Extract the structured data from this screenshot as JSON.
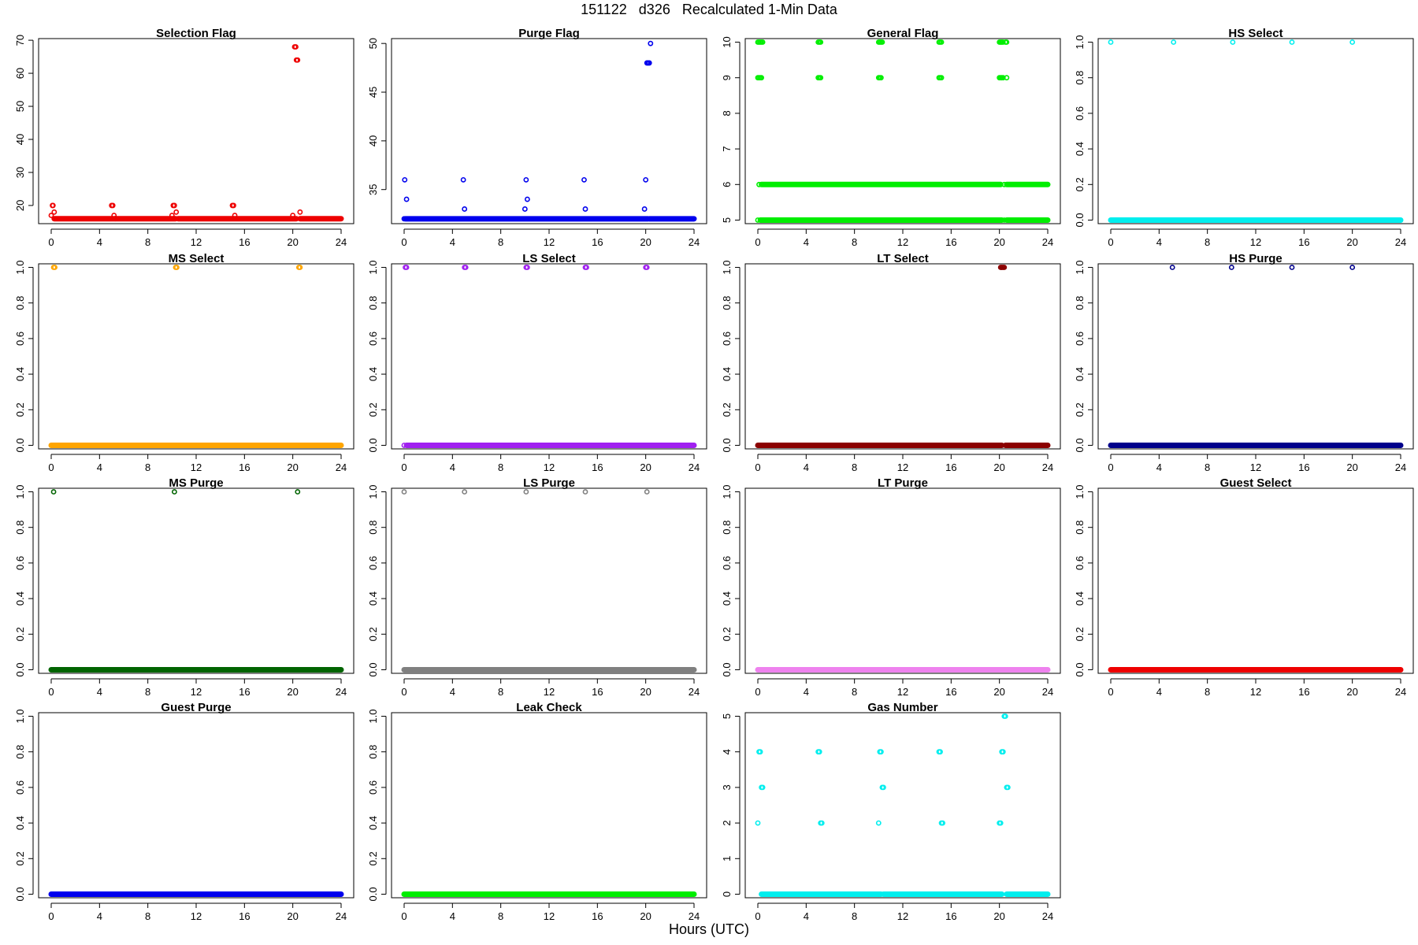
{
  "figure": {
    "title": "151122   d326   Recalculated 1-Min Data",
    "xlabel": "Hours (UTC)"
  },
  "chart_data": [
    {
      "type": "scatter",
      "title": "Selection Flag",
      "color": "#ee0000",
      "xlim": [
        0,
        24
      ],
      "ylim": [
        14.5,
        70.5
      ],
      "xticks": [
        0,
        4,
        8,
        12,
        16,
        20,
        24
      ],
      "yticks": [
        20,
        30,
        40,
        50,
        60,
        70
      ],
      "segments": [
        {
          "from": 0.25,
          "to": 10.3,
          "y": 16
        },
        {
          "from": 10.5,
          "to": 20.3,
          "y": 16
        },
        {
          "from": 20.6,
          "to": 24,
          "y": 16
        }
      ],
      "points": [
        [
          0,
          17
        ],
        [
          0.1,
          20
        ],
        [
          0.15,
          20
        ],
        [
          0.25,
          18
        ],
        [
          5.0,
          20
        ],
        [
          5.1,
          20
        ],
        [
          5.2,
          17
        ],
        [
          5.3,
          16
        ],
        [
          10.0,
          17
        ],
        [
          10.1,
          20
        ],
        [
          10.2,
          20
        ],
        [
          10.35,
          18
        ],
        [
          15.0,
          20
        ],
        [
          15.1,
          20
        ],
        [
          15.2,
          17
        ],
        [
          20.0,
          17
        ],
        [
          20.15,
          68
        ],
        [
          20.25,
          68
        ],
        [
          20.3,
          64
        ],
        [
          20.4,
          64
        ],
        [
          20.6,
          18
        ]
      ]
    },
    {
      "type": "scatter",
      "title": "Purge Flag",
      "color": "#0000ee",
      "xlim": [
        0,
        24
      ],
      "ylim": [
        31.5,
        50.5
      ],
      "xticks": [
        0,
        4,
        8,
        12,
        16,
        20,
        24
      ],
      "yticks": [
        35,
        40,
        45,
        50
      ],
      "segments": [
        {
          "from": 0.1,
          "to": 20.2,
          "y": 32
        },
        {
          "from": 20.3,
          "to": 24,
          "y": 32
        }
      ],
      "points": [
        [
          0,
          32
        ],
        [
          0.05,
          36
        ],
        [
          0.2,
          34
        ],
        [
          4.9,
          36
        ],
        [
          5.0,
          33
        ],
        [
          10.0,
          33
        ],
        [
          10.1,
          36
        ],
        [
          10.2,
          34
        ],
        [
          14.9,
          36
        ],
        [
          15.0,
          33
        ],
        [
          19.9,
          33
        ],
        [
          20.0,
          36
        ],
        [
          20.1,
          48
        ],
        [
          20.2,
          48
        ],
        [
          20.3,
          48
        ],
        [
          20.4,
          50
        ]
      ]
    },
    {
      "type": "scatter",
      "title": "General Flag",
      "color": "#00ee00",
      "xlim": [
        0,
        24
      ],
      "ylim": [
        4.9,
        10.1
      ],
      "xticks": [
        0,
        4,
        8,
        12,
        16,
        20,
        24
      ],
      "yticks": [
        5,
        6,
        7,
        8,
        9,
        10
      ],
      "segments": [
        {
          "from": 0.2,
          "to": 20.2,
          "y": 5
        },
        {
          "from": 20.6,
          "to": 24,
          "y": 5
        },
        {
          "from": 0.3,
          "to": 20.1,
          "y": 6
        },
        {
          "from": 20.6,
          "to": 24,
          "y": 6
        }
      ],
      "points": [
        [
          0,
          10
        ],
        [
          0.1,
          10
        ],
        [
          0.2,
          10
        ],
        [
          0.3,
          10
        ],
        [
          0.4,
          10
        ],
        [
          0,
          9
        ],
        [
          0.1,
          9
        ],
        [
          0.2,
          9
        ],
        [
          0.3,
          9
        ],
        [
          5.0,
          10
        ],
        [
          5.1,
          10
        ],
        [
          5.2,
          10
        ],
        [
          5.0,
          9
        ],
        [
          5.1,
          9
        ],
        [
          5.2,
          9
        ],
        [
          10.0,
          10
        ],
        [
          10.1,
          10
        ],
        [
          10.2,
          10
        ],
        [
          10.3,
          10
        ],
        [
          10.0,
          9
        ],
        [
          10.1,
          9
        ],
        [
          10.2,
          9
        ],
        [
          15.0,
          10
        ],
        [
          15.1,
          10
        ],
        [
          15.2,
          10
        ],
        [
          15.0,
          9
        ],
        [
          15.1,
          9
        ],
        [
          15.2,
          9
        ],
        [
          20.0,
          10
        ],
        [
          20.1,
          10
        ],
        [
          20.2,
          10
        ],
        [
          20.3,
          10
        ],
        [
          20.5,
          10
        ],
        [
          20.6,
          10
        ],
        [
          20.0,
          9
        ],
        [
          20.1,
          9
        ],
        [
          20.2,
          9
        ],
        [
          20.3,
          9
        ],
        [
          20.6,
          9
        ],
        [
          0,
          5
        ],
        [
          20.4,
          5
        ],
        [
          0.1,
          6
        ],
        [
          20.4,
          6
        ]
      ]
    },
    {
      "type": "scatter",
      "title": "HS Select",
      "color": "#00eeee",
      "xlim": [
        0,
        24
      ],
      "ylim": [
        -0.02,
        1.02
      ],
      "xticks": [
        0,
        4,
        8,
        12,
        16,
        20,
        24
      ],
      "yticks": [
        0.0,
        0.2,
        0.4,
        0.6,
        0.8,
        1.0
      ],
      "segments": [
        {
          "from": 0,
          "to": 24,
          "y": 0
        }
      ],
      "points": [
        [
          0,
          1
        ],
        [
          5.2,
          1
        ],
        [
          10.1,
          1
        ],
        [
          15.0,
          1
        ],
        [
          20.0,
          1
        ]
      ]
    },
    {
      "type": "scatter",
      "title": "MS Select",
      "color": "#ffa500",
      "xlim": [
        0,
        24
      ],
      "ylim": [
        -0.02,
        1.02
      ],
      "xticks": [
        0,
        4,
        8,
        12,
        16,
        20,
        24
      ],
      "yticks": [
        0.0,
        0.2,
        0.4,
        0.6,
        0.8,
        1.0
      ],
      "segments": [
        {
          "from": 0,
          "to": 24,
          "y": 0
        }
      ],
      "points": [
        [
          0.2,
          1
        ],
        [
          0.3,
          1
        ],
        [
          10.3,
          1
        ],
        [
          10.4,
          1
        ],
        [
          20.5,
          1
        ],
        [
          20.6,
          1
        ]
      ]
    },
    {
      "type": "scatter",
      "title": "LS Select",
      "color": "#a020f0",
      "xlim": [
        0,
        24
      ],
      "ylim": [
        -0.02,
        1.02
      ],
      "xticks": [
        0,
        4,
        8,
        12,
        16,
        20,
        24
      ],
      "yticks": [
        0.0,
        0.2,
        0.4,
        0.6,
        0.8,
        1.0
      ],
      "segments": [
        {
          "from": 0.2,
          "to": 24,
          "y": 0
        }
      ],
      "points": [
        [
          0,
          0
        ],
        [
          0.1,
          1
        ],
        [
          0.2,
          1
        ],
        [
          5.0,
          1
        ],
        [
          5.1,
          1
        ],
        [
          10.1,
          1
        ],
        [
          10.2,
          1
        ],
        [
          15.0,
          1
        ],
        [
          15.1,
          1
        ],
        [
          20.0,
          1
        ],
        [
          20.1,
          1
        ]
      ]
    },
    {
      "type": "scatter",
      "title": "LT Select",
      "color": "#8b0000",
      "xlim": [
        0,
        24
      ],
      "ylim": [
        -0.02,
        1.02
      ],
      "xticks": [
        0,
        4,
        8,
        12,
        16,
        20,
        24
      ],
      "yticks": [
        0.0,
        0.2,
        0.4,
        0.6,
        0.8,
        1.0
      ],
      "segments": [
        {
          "from": 0,
          "to": 20.2,
          "y": 0
        },
        {
          "from": 20.5,
          "to": 24,
          "y": 0
        }
      ],
      "points": [
        [
          20.1,
          1
        ],
        [
          20.2,
          1
        ],
        [
          20.3,
          1
        ],
        [
          20.4,
          1
        ]
      ]
    },
    {
      "type": "scatter",
      "title": "HS Purge",
      "color": "#00008b",
      "xlim": [
        0,
        24
      ],
      "ylim": [
        -0.02,
        1.02
      ],
      "xticks": [
        0,
        4,
        8,
        12,
        16,
        20,
        24
      ],
      "yticks": [
        0.0,
        0.2,
        0.4,
        0.6,
        0.8,
        1.0
      ],
      "segments": [
        {
          "from": 0,
          "to": 24,
          "y": 0
        }
      ],
      "points": [
        [
          5.1,
          1
        ],
        [
          10.0,
          1
        ],
        [
          15.0,
          1
        ],
        [
          20.0,
          1
        ]
      ]
    },
    {
      "type": "scatter",
      "title": "MS Purge",
      "color": "#006400",
      "xlim": [
        0,
        24
      ],
      "ylim": [
        -0.02,
        1.02
      ],
      "xticks": [
        0,
        4,
        8,
        12,
        16,
        20,
        24
      ],
      "yticks": [
        0.0,
        0.2,
        0.4,
        0.6,
        0.8,
        1.0
      ],
      "segments": [
        {
          "from": 0,
          "to": 24,
          "y": 0
        }
      ],
      "points": [
        [
          0.2,
          1
        ],
        [
          10.2,
          1
        ],
        [
          20.4,
          1
        ]
      ]
    },
    {
      "type": "scatter",
      "title": "LS Purge",
      "color": "#808080",
      "xlim": [
        0,
        24
      ],
      "ylim": [
        -0.02,
        1.02
      ],
      "xticks": [
        0,
        4,
        8,
        12,
        16,
        20,
        24
      ],
      "yticks": [
        0.0,
        0.2,
        0.4,
        0.6,
        0.8,
        1.0
      ],
      "segments": [
        {
          "from": 0,
          "to": 24,
          "y": 0
        }
      ],
      "points": [
        [
          0,
          1
        ],
        [
          5.0,
          1
        ],
        [
          10.1,
          1
        ],
        [
          15.0,
          1
        ],
        [
          20.1,
          1
        ]
      ]
    },
    {
      "type": "scatter",
      "title": "LT Purge",
      "color": "#ee82ee",
      "xlim": [
        0,
        24
      ],
      "ylim": [
        -0.02,
        1.02
      ],
      "xticks": [
        0,
        4,
        8,
        12,
        16,
        20,
        24
      ],
      "yticks": [
        0.0,
        0.2,
        0.4,
        0.6,
        0.8,
        1.0
      ],
      "segments": [
        {
          "from": 0,
          "to": 24,
          "y": 0
        }
      ],
      "points": []
    },
    {
      "type": "scatter",
      "title": "Guest Select",
      "color": "#ee0000",
      "xlim": [
        0,
        24
      ],
      "ylim": [
        -0.02,
        1.02
      ],
      "xticks": [
        0,
        4,
        8,
        12,
        16,
        20,
        24
      ],
      "yticks": [
        0.0,
        0.2,
        0.4,
        0.6,
        0.8,
        1.0
      ],
      "segments": [
        {
          "from": 0,
          "to": 24,
          "y": 0
        }
      ],
      "points": []
    },
    {
      "type": "scatter",
      "title": "Guest Purge",
      "color": "#0000ee",
      "xlim": [
        0,
        24
      ],
      "ylim": [
        -0.02,
        1.02
      ],
      "xticks": [
        0,
        4,
        8,
        12,
        16,
        20,
        24
      ],
      "yticks": [
        0.0,
        0.2,
        0.4,
        0.6,
        0.8,
        1.0
      ],
      "segments": [
        {
          "from": 0,
          "to": 24,
          "y": 0
        }
      ],
      "points": []
    },
    {
      "type": "scatter",
      "title": "Leak Check",
      "color": "#00ee00",
      "xlim": [
        0,
        24
      ],
      "ylim": [
        -0.02,
        1.02
      ],
      "xticks": [
        0,
        4,
        8,
        12,
        16,
        20,
        24
      ],
      "yticks": [
        0.0,
        0.2,
        0.4,
        0.6,
        0.8,
        1.0
      ],
      "segments": [
        {
          "from": 0,
          "to": 24,
          "y": 0
        }
      ],
      "points": []
    },
    {
      "type": "scatter",
      "title": "Gas Number",
      "color": "#00eeee",
      "xlim": [
        0,
        24
      ],
      "ylim": [
        -0.1,
        5.1
      ],
      "xticks": [
        0,
        4,
        8,
        12,
        16,
        20,
        24
      ],
      "yticks": [
        0,
        1,
        2,
        3,
        4,
        5
      ],
      "segments": [
        {
          "from": 0.3,
          "to": 10.2,
          "y": 0
        },
        {
          "from": 10.4,
          "to": 20.2,
          "y": 0
        },
        {
          "from": 20.6,
          "to": 24,
          "y": 0
        }
      ],
      "points": [
        [
          0,
          2
        ],
        [
          0.1,
          4
        ],
        [
          0.2,
          4
        ],
        [
          0.3,
          3
        ],
        [
          0.4,
          3
        ],
        [
          5.0,
          4
        ],
        [
          5.1,
          4
        ],
        [
          5.2,
          2
        ],
        [
          5.3,
          2
        ],
        [
          10.0,
          2
        ],
        [
          10.1,
          4
        ],
        [
          10.2,
          4
        ],
        [
          10.3,
          3
        ],
        [
          10.4,
          3
        ],
        [
          15.0,
          4
        ],
        [
          15.1,
          4
        ],
        [
          15.2,
          2
        ],
        [
          15.3,
          2
        ],
        [
          20.0,
          2
        ],
        [
          20.1,
          2
        ],
        [
          20.2,
          4
        ],
        [
          20.3,
          4
        ],
        [
          20.4,
          5
        ],
        [
          20.5,
          5
        ],
        [
          20.6,
          3
        ],
        [
          20.7,
          3
        ]
      ]
    }
  ]
}
